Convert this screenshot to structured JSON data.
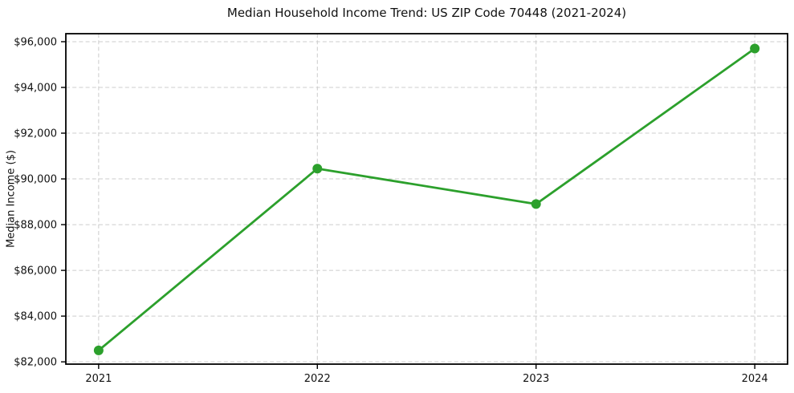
{
  "chart_data": {
    "type": "line",
    "title": "Median Household Income Trend: US ZIP Code 70448 (2021-2024)",
    "xlabel": "",
    "ylabel": "Median Income ($)",
    "x": [
      2021,
      2022,
      2023,
      2024
    ],
    "xtick_labels": [
      "2021",
      "2022",
      "2023",
      "2024"
    ],
    "series": [
      {
        "name": "median-household-income",
        "values": [
          82500,
          90450,
          88900,
          95700
        ],
        "color": "#2ca02c",
        "marker": "circle"
      }
    ],
    "yticks": [
      82000,
      84000,
      86000,
      88000,
      90000,
      92000,
      94000,
      96000
    ],
    "ytick_labels": [
      "$82,000",
      "$84,000",
      "$86,000",
      "$88,000",
      "$90,000",
      "$92,000",
      "$94,000",
      "$96,000"
    ],
    "ylim": [
      81900,
      96350
    ],
    "xlim": [
      2020.85,
      2024.15
    ],
    "grid": true,
    "grid_style": "dashed",
    "grid_color": "#cccccc",
    "spine_color": "#000000",
    "background": "#ffffff",
    "legend": "none"
  }
}
